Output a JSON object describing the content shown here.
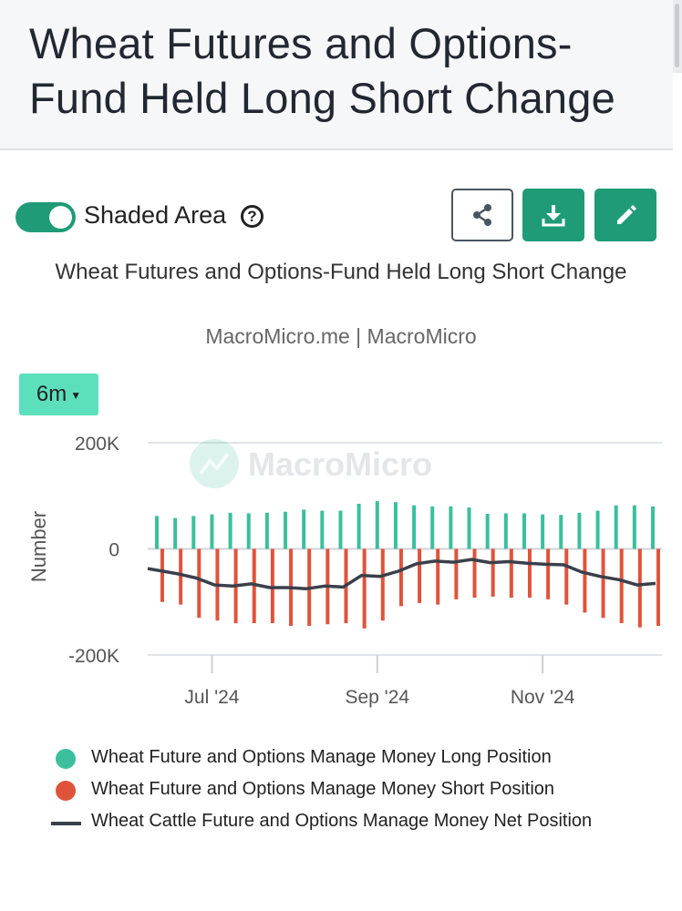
{
  "header": {
    "title": "Wheat Futures and Options-Fund Held Long Short Change"
  },
  "controls": {
    "shaded_area_label": "Shaded Area",
    "help_glyph": "?",
    "range_label": "6m",
    "share_icon": "share-icon",
    "download_icon": "download-icon",
    "edit_icon": "pencil-icon"
  },
  "colors": {
    "brand": "#1f9b77",
    "long": "#3bbf9c",
    "short": "#e0533b",
    "net": "#3a3f4b",
    "range_button": "#5ce0bc"
  },
  "chart_data": {
    "type": "bar",
    "title": "Wheat Futures and Options-Fund Held Long Short Change",
    "subtitle": "MacroMicro.me | MacroMicro",
    "watermark": "MacroMicro",
    "ylabel": "Number",
    "ylim": [
      -200000,
      200000
    ],
    "yticks": [
      {
        "value": 200000,
        "label": "200K"
      },
      {
        "value": 0,
        "label": "0"
      },
      {
        "value": -200000,
        "label": "-200K"
      }
    ],
    "xticks": [
      {
        "date": "2024-07-02",
        "label": "Jul '24"
      },
      {
        "date": "2024-09-03",
        "label": "Sep '24"
      },
      {
        "date": "2024-11-05",
        "label": "Nov '24"
      }
    ],
    "x": [
      "2024-06-11",
      "2024-06-18",
      "2024-06-25",
      "2024-07-02",
      "2024-07-09",
      "2024-07-16",
      "2024-07-23",
      "2024-07-30",
      "2024-08-06",
      "2024-08-13",
      "2024-08-20",
      "2024-08-27",
      "2024-09-03",
      "2024-09-10",
      "2024-09-17",
      "2024-09-24",
      "2024-10-01",
      "2024-10-08",
      "2024-10-15",
      "2024-10-22",
      "2024-10-29",
      "2024-11-05",
      "2024-11-12",
      "2024-11-19",
      "2024-11-26",
      "2024-12-03",
      "2024-12-10",
      "2024-12-17"
    ],
    "series": [
      {
        "name": "Wheat Future and Options Manage Money Long Position",
        "type": "bar",
        "color": "#3bbf9c",
        "values": [
          62000,
          58000,
          62000,
          65000,
          68000,
          67000,
          68000,
          70000,
          74000,
          72000,
          72000,
          85000,
          90000,
          88000,
          82000,
          80000,
          80000,
          78000,
          66000,
          67000,
          67000,
          65000,
          64000,
          68000,
          72000,
          82000,
          82000,
          80000
        ]
      },
      {
        "name": "Wheat Future and Options Manage Money Short Position",
        "type": "bar",
        "color": "#e0533b",
        "values": [
          -100000,
          -105000,
          -130000,
          -135000,
          -140000,
          -140000,
          -140000,
          -145000,
          -145000,
          -142000,
          -140000,
          -150000,
          -135000,
          -108000,
          -102000,
          -105000,
          -95000,
          -92000,
          -90000,
          -92000,
          -92000,
          -95000,
          -105000,
          -120000,
          -130000,
          -140000,
          -148000,
          -145000
        ]
      },
      {
        "name": "Wheat Cattle Future and Options Manage Money Net Position",
        "type": "line",
        "color": "#3a3f4b",
        "values": [
          -37000,
          -47000,
          -55000,
          -68000,
          -70000,
          -66000,
          -73000,
          -73000,
          -75000,
          -70000,
          -72000,
          -50000,
          -52000,
          -42000,
          -28000,
          -23000,
          -25000,
          -20000,
          -26000,
          -24000,
          -27000,
          -29000,
          -30000,
          -44000,
          -52000,
          -58000,
          -68000,
          -65000
        ]
      }
    ],
    "legend_position": "bottom",
    "grid": true
  }
}
